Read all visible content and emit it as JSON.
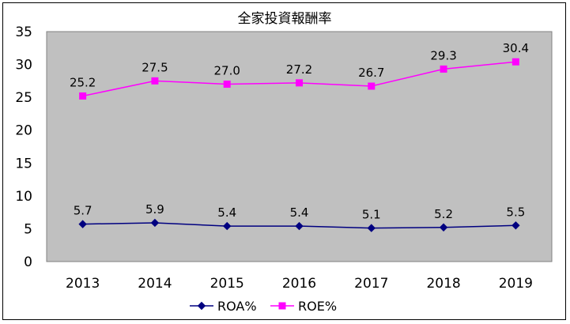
{
  "chart_data": {
    "type": "line",
    "title": "全家投資報酬率",
    "categories": [
      "2013",
      "2014",
      "2015",
      "2016",
      "2017",
      "2018",
      "2019"
    ],
    "series": [
      {
        "name": "ROA%",
        "values": [
          5.7,
          5.9,
          5.4,
          5.4,
          5.1,
          5.2,
          5.5
        ],
        "color": "#000080",
        "marker": "diamond"
      },
      {
        "name": "ROE%",
        "values": [
          25.2,
          27.5,
          27.0,
          27.2,
          26.7,
          29.3,
          30.4
        ],
        "color": "#FF00FF",
        "marker": "square"
      }
    ],
    "ylim": [
      0,
      35
    ],
    "yticks": [
      0,
      5,
      10,
      15,
      20,
      25,
      30,
      35
    ],
    "data_labels": {
      "ROA%": [
        "5.7",
        "5.9",
        "5.4",
        "5.4",
        "5.1",
        "5.2",
        "5.5"
      ],
      "ROE%": [
        "25.2",
        "27.5",
        "27.0",
        "27.2",
        "26.7",
        "29.3",
        "30.4"
      ]
    },
    "grid": false,
    "legend": "bottom",
    "plot_background": "#C0C0C0"
  }
}
